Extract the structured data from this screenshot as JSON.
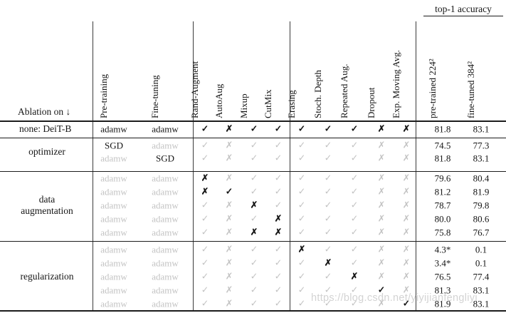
{
  "header": {
    "ablation_label": "Ablation on ↓",
    "top1_label": "top-1 accuracy",
    "rotated_columns": [
      "Pre-training",
      "Fine-tuning",
      "Rand-Augment",
      "AutoAug",
      "Mixup",
      "CutMix",
      "Erasing",
      "Stoch. Depth",
      "Repeated Aug.",
      "Dropout",
      "Exp. Moving Avg.",
      "pre-trained 224²",
      "fine-tuned 384²"
    ]
  },
  "marks_legend": {
    "check": "✓",
    "cross": "✗",
    "strong_means": "value changed by ablation (black)",
    "muted_means": "unchanged default (gray)"
  },
  "colors": {
    "text_strong": "#151515",
    "text_muted": "#c3c3c3",
    "rule": "#1c1c1c",
    "background": "#ffffff"
  },
  "watermark": "https://blog.csdn.net/yiyijianfengliyi",
  "sections": [
    {
      "label": "none: DeiT-B",
      "label_lines": [
        "none: DeiT-B"
      ],
      "rows": [
        {
          "pretraining": "adamw",
          "pretraining_strong": true,
          "finetuning": "adamw",
          "finetuning_strong": true,
          "glyphs": [
            "✓",
            "✗",
            "✓",
            "✓",
            "✓",
            "✓",
            "✓",
            "✗",
            "✗"
          ],
          "strong": [
            true,
            true,
            true,
            true,
            true,
            true,
            true,
            true,
            true
          ],
          "acc_224": "81.8",
          "acc_384": "83.1"
        }
      ]
    },
    {
      "label": "optimizer",
      "label_lines": [
        "optimizer"
      ],
      "rows": [
        {
          "pretraining": "SGD",
          "pretraining_strong": true,
          "finetuning": "adamw",
          "finetuning_strong": false,
          "glyphs": [
            "✓",
            "✗",
            "✓",
            "✓",
            "✓",
            "✓",
            "✓",
            "✗",
            "✗"
          ],
          "strong": [
            false,
            false,
            false,
            false,
            false,
            false,
            false,
            false,
            false
          ],
          "acc_224": "74.5",
          "acc_384": "77.3"
        },
        {
          "pretraining": "adamw",
          "pretraining_strong": false,
          "finetuning": "SGD",
          "finetuning_strong": true,
          "glyphs": [
            "✓",
            "✗",
            "✓",
            "✓",
            "✓",
            "✓",
            "✓",
            "✗",
            "✗"
          ],
          "strong": [
            false,
            false,
            false,
            false,
            false,
            false,
            false,
            false,
            false
          ],
          "acc_224": "81.8",
          "acc_384": "83.1"
        }
      ]
    },
    {
      "label": "data augmentation",
      "label_lines": [
        "data",
        "augmentation"
      ],
      "rows": [
        {
          "pretraining": "adamw",
          "pretraining_strong": false,
          "finetuning": "adamw",
          "finetuning_strong": false,
          "glyphs": [
            "✗",
            "✗",
            "✓",
            "✓",
            "✓",
            "✓",
            "✓",
            "✗",
            "✗"
          ],
          "strong": [
            true,
            false,
            false,
            false,
            false,
            false,
            false,
            false,
            false
          ],
          "acc_224": "79.6",
          "acc_384": "80.4"
        },
        {
          "pretraining": "adamw",
          "pretraining_strong": false,
          "finetuning": "adamw",
          "finetuning_strong": false,
          "glyphs": [
            "✗",
            "✓",
            "✓",
            "✓",
            "✓",
            "✓",
            "✓",
            "✗",
            "✗"
          ],
          "strong": [
            true,
            true,
            false,
            false,
            false,
            false,
            false,
            false,
            false
          ],
          "acc_224": "81.2",
          "acc_384": "81.9"
        },
        {
          "pretraining": "adamw",
          "pretraining_strong": false,
          "finetuning": "adamw",
          "finetuning_strong": false,
          "glyphs": [
            "✓",
            "✗",
            "✗",
            "✓",
            "✓",
            "✓",
            "✓",
            "✗",
            "✗"
          ],
          "strong": [
            false,
            false,
            true,
            false,
            false,
            false,
            false,
            false,
            false
          ],
          "acc_224": "78.7",
          "acc_384": "79.8"
        },
        {
          "pretraining": "adamw",
          "pretraining_strong": false,
          "finetuning": "adamw",
          "finetuning_strong": false,
          "glyphs": [
            "✓",
            "✗",
            "✓",
            "✗",
            "✓",
            "✓",
            "✓",
            "✗",
            "✗"
          ],
          "strong": [
            false,
            false,
            false,
            true,
            false,
            false,
            false,
            false,
            false
          ],
          "acc_224": "80.0",
          "acc_384": "80.6"
        },
        {
          "pretraining": "adamw",
          "pretraining_strong": false,
          "finetuning": "adamw",
          "finetuning_strong": false,
          "glyphs": [
            "✓",
            "✗",
            "✗",
            "✗",
            "✓",
            "✓",
            "✓",
            "✗",
            "✗"
          ],
          "strong": [
            false,
            false,
            true,
            true,
            false,
            false,
            false,
            false,
            false
          ],
          "acc_224": "75.8",
          "acc_384": "76.7"
        }
      ]
    },
    {
      "label": "regularization",
      "label_lines": [
        "regularization"
      ],
      "rows": [
        {
          "pretraining": "adamw",
          "pretraining_strong": false,
          "finetuning": "adamw",
          "finetuning_strong": false,
          "glyphs": [
            "✓",
            "✗",
            "✓",
            "✓",
            "✗",
            "✓",
            "✓",
            "✗",
            "✗"
          ],
          "strong": [
            false,
            false,
            false,
            false,
            true,
            false,
            false,
            false,
            false
          ],
          "acc_224": "4.3*",
          "acc_384": "0.1"
        },
        {
          "pretraining": "adamw",
          "pretraining_strong": false,
          "finetuning": "adamw",
          "finetuning_strong": false,
          "glyphs": [
            "✓",
            "✗",
            "✓",
            "✓",
            "✓",
            "✗",
            "✓",
            "✗",
            "✗"
          ],
          "strong": [
            false,
            false,
            false,
            false,
            false,
            true,
            false,
            false,
            false
          ],
          "acc_224": "3.4*",
          "acc_384": "0.1"
        },
        {
          "pretraining": "adamw",
          "pretraining_strong": false,
          "finetuning": "adamw",
          "finetuning_strong": false,
          "glyphs": [
            "✓",
            "✗",
            "✓",
            "✓",
            "✓",
            "✓",
            "✗",
            "✗",
            "✗"
          ],
          "strong": [
            false,
            false,
            false,
            false,
            false,
            false,
            true,
            false,
            false
          ],
          "acc_224": "76.5",
          "acc_384": "77.4"
        },
        {
          "pretraining": "adamw",
          "pretraining_strong": false,
          "finetuning": "adamw",
          "finetuning_strong": false,
          "glyphs": [
            "✓",
            "✗",
            "✓",
            "✓",
            "✓",
            "✓",
            "✓",
            "✓",
            "✗"
          ],
          "strong": [
            false,
            false,
            false,
            false,
            false,
            false,
            false,
            true,
            false
          ],
          "acc_224": "81.3",
          "acc_384": "83.1"
        },
        {
          "pretraining": "adamw",
          "pretraining_strong": false,
          "finetuning": "adamw",
          "finetuning_strong": false,
          "glyphs": [
            "✓",
            "✗",
            "✓",
            "✓",
            "✓",
            "✓",
            "✓",
            "✗",
            "✓"
          ],
          "strong": [
            false,
            false,
            false,
            false,
            false,
            false,
            false,
            false,
            true
          ],
          "acc_224": "81.9",
          "acc_384": "83.1"
        }
      ]
    }
  ]
}
